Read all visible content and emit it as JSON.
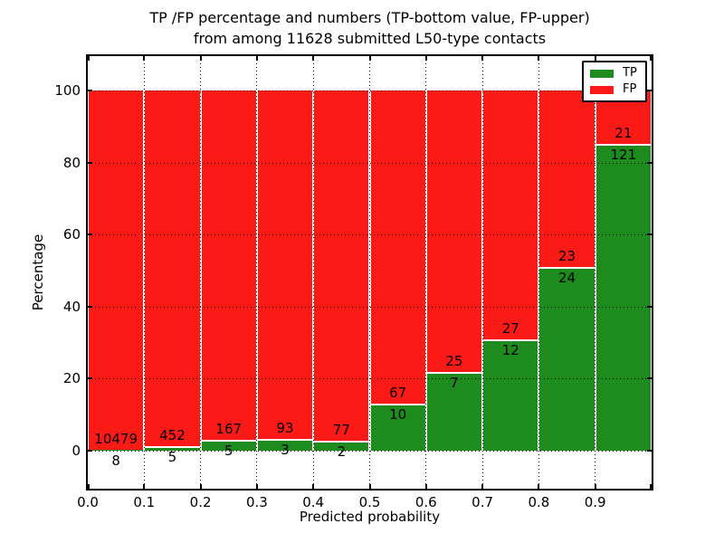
{
  "figure": {
    "title_line1": "TP /FP percentage and numbers (TP-bottom value, FP-upper)",
    "title_line2": "from among 11628 submitted L50-type contacts"
  },
  "axes": {
    "xlabel": "Predicted probability",
    "ylabel": "Percentage"
  },
  "legend": {
    "items": [
      {
        "label": "TP",
        "color": "#1e8b1e"
      },
      {
        "label": "FP",
        "color": "#fc1a16"
      }
    ]
  },
  "chart_data": {
    "type": "bar",
    "stacked": true,
    "normalized": "each bin stacks to 100 percent",
    "title": "TP /FP percentage and numbers (TP-bottom value, FP-upper) from among 11628 submitted L50-type contacts",
    "xlabel": "Predicted probability",
    "ylabel": "Percentage",
    "total_contacts": 11628,
    "bins": [
      "0.0-0.1",
      "0.1-0.2",
      "0.2-0.3",
      "0.3-0.4",
      "0.4-0.5",
      "0.5-0.6",
      "0.6-0.7",
      "0.7-0.8",
      "0.8-0.9",
      "0.9-1.0"
    ],
    "series": [
      {
        "name": "TP",
        "color": "#1e8b1e",
        "counts": [
          8,
          5,
          5,
          3,
          2,
          10,
          7,
          12,
          24,
          121
        ]
      },
      {
        "name": "FP",
        "color": "#fc1a16",
        "counts": [
          10479,
          452,
          167,
          93,
          77,
          67,
          25,
          27,
          23,
          21
        ]
      }
    ],
    "tp_percent": [
      0.08,
      1.09,
      2.91,
      3.13,
      2.53,
      12.99,
      21.88,
      30.77,
      51.06,
      85.21
    ],
    "x_tick_labels": [
      "0.0",
      "0.1",
      "0.2",
      "0.3",
      "0.4",
      "0.5",
      "0.6",
      "0.7",
      "0.8",
      "0.9"
    ],
    "y_ticks": [
      0,
      20,
      40,
      60,
      80,
      100
    ],
    "xlim": [
      0.0,
      1.0
    ],
    "ylim": [
      -10.7,
      109.6
    ],
    "grid": "dotted",
    "legend_position": "upper right"
  }
}
